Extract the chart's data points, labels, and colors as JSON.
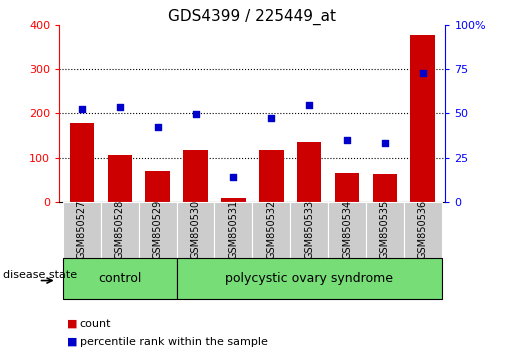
{
  "title": "GDS4399 / 225449_at",
  "samples": [
    "GSM850527",
    "GSM850528",
    "GSM850529",
    "GSM850530",
    "GSM850531",
    "GSM850532",
    "GSM850533",
    "GSM850534",
    "GSM850535",
    "GSM850536"
  ],
  "counts": [
    178,
    105,
    70,
    118,
    8,
    118,
    135,
    65,
    62,
    378
  ],
  "percentiles": [
    52.5,
    53.8,
    42.0,
    49.5,
    13.8,
    47.5,
    54.5,
    35.0,
    33.3,
    72.5
  ],
  "ylim_left": [
    0,
    400
  ],
  "ylim_right": [
    0,
    100
  ],
  "yticks_left": [
    0,
    100,
    200,
    300,
    400
  ],
  "yticks_right": [
    0,
    25,
    50,
    75,
    100
  ],
  "bar_color": "#cc0000",
  "dot_color": "#0000cc",
  "control_n": 3,
  "pcos_n": 7,
  "control_label": "control",
  "pcos_label": "polycystic ovary syndrome",
  "group_color": "#77dd77",
  "disease_label": "disease state",
  "legend_count_label": "count",
  "legend_percentile_label": "percentile rank within the sample",
  "title_fontsize": 11,
  "axis_fontsize": 8,
  "tick_fontsize": 7,
  "group_fontsize": 9,
  "legend_fontsize": 8
}
